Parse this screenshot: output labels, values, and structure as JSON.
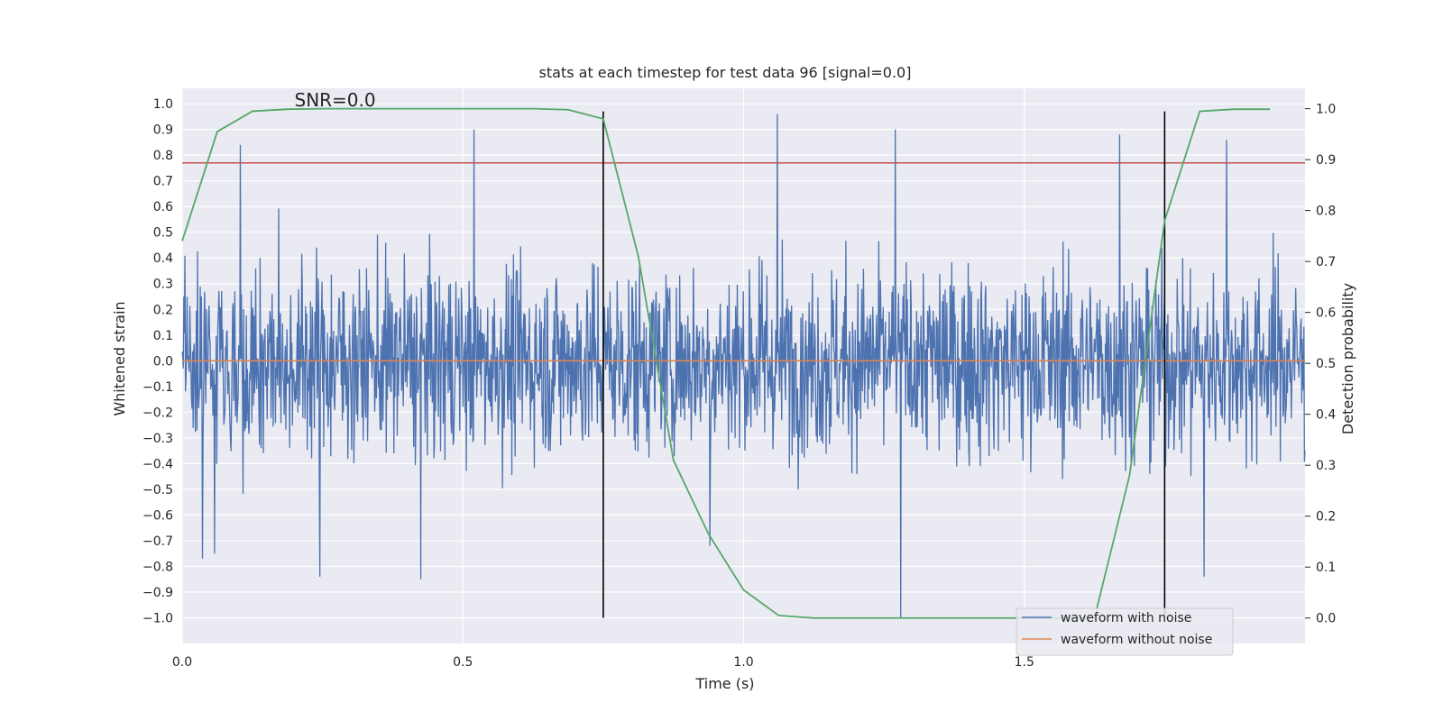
{
  "chart_data": {
    "type": "line",
    "title": "stats at each timestep for test data 96 [signal=0.0]",
    "xlabel": "Time (s)",
    "ylabel": "Whitened strain",
    "y2label": "Detection probability",
    "xlim": [
      0.0,
      2.0
    ],
    "ylim": [
      -1.1,
      1.06
    ],
    "y2lim": [
      -0.05,
      1.04
    ],
    "x_ticks": [
      0.0,
      0.5,
      1.0,
      1.5
    ],
    "x_tick_labels": [
      "0.0",
      "0.5",
      "1.0",
      "1.5"
    ],
    "y_ticks": [
      1.0,
      0.9,
      0.8,
      0.7,
      0.6,
      0.5,
      0.4,
      0.3,
      0.2,
      0.1,
      0.0,
      -0.1,
      -0.2,
      -0.3,
      -0.4,
      -0.5,
      -0.6,
      -0.7,
      -0.8,
      -0.9,
      -1.0
    ],
    "y_tick_labels": [
      "1.0",
      "0.9",
      "0.8",
      "0.7",
      "0.6",
      "0.5",
      "0.4",
      "0.3",
      "0.2",
      "0.1",
      "0.0",
      "−0.1",
      "−0.2",
      "−0.3",
      "−0.4",
      "−0.5",
      "−0.6",
      "−0.7",
      "−0.8",
      "−0.9",
      "−1.0"
    ],
    "y2_ticks": [
      1.0,
      0.9,
      0.8,
      0.7,
      0.6,
      0.5,
      0.4,
      0.3,
      0.2,
      0.1,
      0.0
    ],
    "y2_tick_labels": [
      "1.0",
      "0.9",
      "0.8",
      "0.7",
      "0.6",
      "0.5",
      "0.4",
      "0.3",
      "0.2",
      "0.1",
      "0.0"
    ],
    "annotation": "SNR=0.0",
    "annotation_at": [
      0.2,
      0.99
    ],
    "threshold_y": 0.77,
    "threshold_color": "#c44e52",
    "vlines": [
      0.75,
      1.75
    ],
    "vline_range": [
      -1.0,
      0.97
    ],
    "noise_series": {
      "name": "waveform with noise",
      "color": "#4c72b0",
      "x_start": 0.0,
      "x_end": 2.0,
      "samples": 2048,
      "approx_std": 0.26,
      "peaks": [
        [
          0.104,
          0.84
        ],
        [
          0.52,
          0.9
        ],
        [
          1.06,
          0.96
        ],
        [
          1.27,
          0.9
        ],
        [
          1.28,
          -1.0
        ],
        [
          1.86,
          0.86
        ],
        [
          0.245,
          -0.84
        ],
        [
          0.425,
          -0.85
        ],
        [
          0.036,
          -0.77
        ],
        [
          0.058,
          -0.75
        ],
        [
          0.94,
          -0.72
        ],
        [
          1.67,
          0.88
        ],
        [
          1.82,
          -0.84
        ]
      ]
    },
    "clean_series": {
      "name": "waveform without noise",
      "color": "#dd8452",
      "x": [
        0.0,
        2.0
      ],
      "y": [
        0.0,
        0.0
      ]
    },
    "prob_series": {
      "name": "Detection probability",
      "color": "#55a868",
      "x": [
        0.0,
        0.0625,
        0.125,
        0.1875,
        0.25,
        0.3125,
        0.375,
        0.4375,
        0.5,
        0.5625,
        0.625,
        0.6875,
        0.75,
        0.8125,
        0.875,
        0.9375,
        1.0,
        1.0625,
        1.125,
        1.1875,
        1.25,
        1.3125,
        1.375,
        1.4375,
        1.5,
        1.5625,
        1.625,
        1.6875,
        1.75,
        1.8125,
        1.875,
        1.9375
      ],
      "y": [
        0.74,
        0.955,
        0.995,
        0.999,
        1.0,
        1.0,
        1.0,
        1.0,
        1.0,
        1.0,
        1.0,
        0.998,
        0.98,
        0.71,
        0.31,
        0.165,
        0.055,
        0.005,
        0.0,
        0.0,
        0.0,
        0.0,
        0.0,
        0.0,
        0.0,
        0.0,
        0.0,
        0.28,
        0.78,
        0.995,
        0.999,
        0.999
      ]
    },
    "legend": {
      "position": "lower-right",
      "entries": [
        {
          "label": "waveform with noise",
          "color": "#4c72b0"
        },
        {
          "label": "waveform without noise",
          "color": "#dd8452"
        }
      ]
    },
    "colors": {
      "plot_bg": "#eaeaf2",
      "grid": "#ffffff",
      "vline": "#000000"
    }
  }
}
